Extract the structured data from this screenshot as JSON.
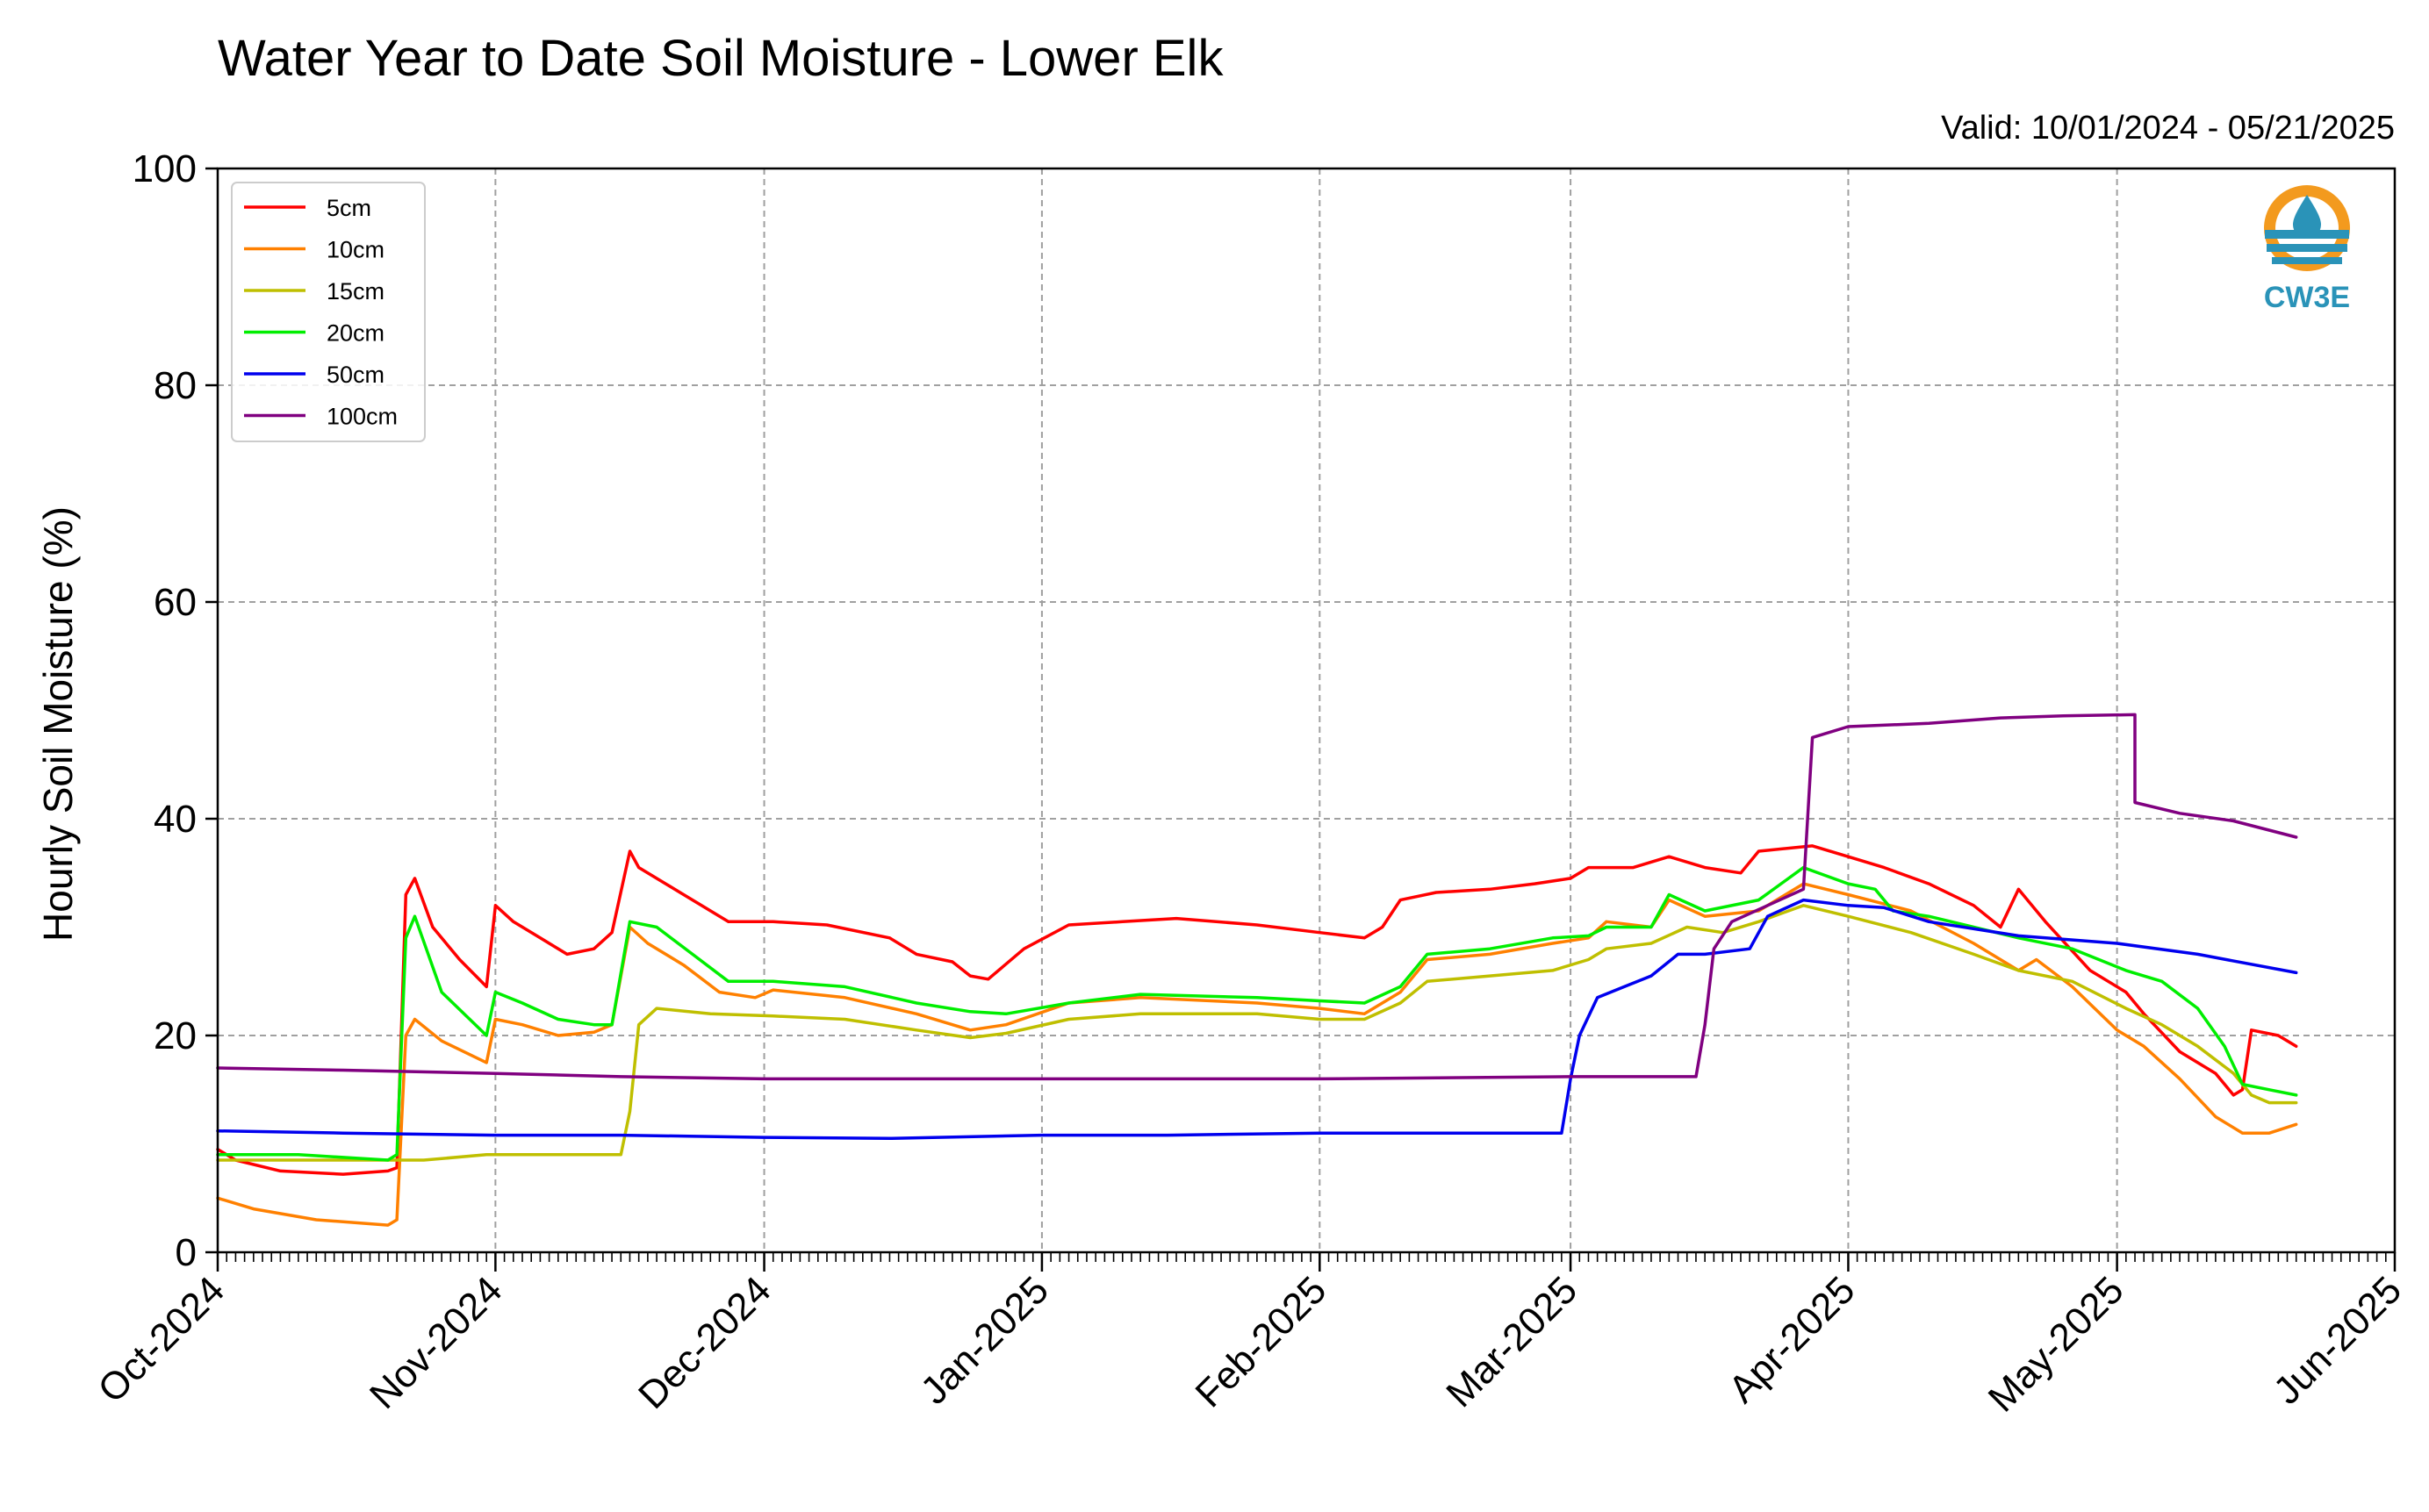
{
  "chart_data": {
    "type": "line",
    "title": "Water Year to Date Soil Moisture - Lower Elk",
    "subtitle": "Valid: 10/01/2024 - 05/21/2025",
    "ylabel": "Hourly Soil Moisture (%)",
    "xlabel": "",
    "ylim": [
      0,
      100
    ],
    "yticks": [
      0,
      20,
      40,
      60,
      80,
      100
    ],
    "xlim": [
      "2024-10-01",
      "2025-06-01"
    ],
    "xticks": [
      {
        "date": "2024-10-01",
        "label": "Oct-2024"
      },
      {
        "date": "2024-11-01",
        "label": "Nov-2024"
      },
      {
        "date": "2024-12-01",
        "label": "Dec-2024"
      },
      {
        "date": "2025-01-01",
        "label": "Jan-2025"
      },
      {
        "date": "2025-02-01",
        "label": "Feb-2025"
      },
      {
        "date": "2025-03-01",
        "label": "Mar-2025"
      },
      {
        "date": "2025-04-01",
        "label": "Apr-2025"
      },
      {
        "date": "2025-05-01",
        "label": "May-2025"
      },
      {
        "date": "2025-06-01",
        "label": "Jun-2025"
      }
    ],
    "grid": true,
    "legend_position": "top-left",
    "logo_text": "CW3E",
    "series": [
      {
        "name": "5cm",
        "color": "#ff0000",
        "points": [
          [
            "2024-10-01",
            9.5
          ],
          [
            "2024-10-03",
            8.5
          ],
          [
            "2024-10-08",
            7.5
          ],
          [
            "2024-10-15",
            7.2
          ],
          [
            "2024-10-20",
            7.5
          ],
          [
            "2024-10-21",
            7.8
          ],
          [
            "2024-10-22",
            33.0
          ],
          [
            "2024-10-23",
            34.5
          ],
          [
            "2024-10-25",
            30.0
          ],
          [
            "2024-10-28",
            27.0
          ],
          [
            "2024-10-31",
            24.5
          ],
          [
            "2024-11-01",
            32.0
          ],
          [
            "2024-11-03",
            30.5
          ],
          [
            "2024-11-06",
            29.0
          ],
          [
            "2024-11-09",
            27.5
          ],
          [
            "2024-11-12",
            28.0
          ],
          [
            "2024-11-14",
            29.5
          ],
          [
            "2024-11-16",
            37.0
          ],
          [
            "2024-11-17",
            35.5
          ],
          [
            "2024-11-20",
            34.0
          ],
          [
            "2024-11-24",
            32.0
          ],
          [
            "2024-11-27",
            30.5
          ],
          [
            "2024-12-02",
            30.5
          ],
          [
            "2024-12-08",
            30.2
          ],
          [
            "2024-12-15",
            29.0
          ],
          [
            "2024-12-18",
            27.5
          ],
          [
            "2024-12-22",
            26.8
          ],
          [
            "2024-12-24",
            25.5
          ],
          [
            "2024-12-26",
            25.2
          ],
          [
            "2024-12-30",
            28.0
          ],
          [
            "2025-01-04",
            30.2
          ],
          [
            "2025-01-10",
            30.5
          ],
          [
            "2025-01-16",
            30.8
          ],
          [
            "2025-01-25",
            30.2
          ],
          [
            "2025-02-01",
            29.5
          ],
          [
            "2025-02-06",
            29.0
          ],
          [
            "2025-02-08",
            30.0
          ],
          [
            "2025-02-10",
            32.5
          ],
          [
            "2025-02-14",
            33.2
          ],
          [
            "2025-02-20",
            33.5
          ],
          [
            "2025-02-25",
            34.0
          ],
          [
            "2025-03-01",
            34.5
          ],
          [
            "2025-03-03",
            35.5
          ],
          [
            "2025-03-08",
            35.5
          ],
          [
            "2025-03-12",
            36.5
          ],
          [
            "2025-03-16",
            35.5
          ],
          [
            "2025-03-20",
            35.0
          ],
          [
            "2025-03-22",
            37.0
          ],
          [
            "2025-03-28",
            37.5
          ],
          [
            "2025-04-01",
            36.5
          ],
          [
            "2025-04-05",
            35.5
          ],
          [
            "2025-04-10",
            34.0
          ],
          [
            "2025-04-15",
            32.0
          ],
          [
            "2025-04-18",
            30.0
          ],
          [
            "2025-04-20",
            33.5
          ],
          [
            "2025-04-23",
            30.5
          ],
          [
            "2025-04-28",
            26.0
          ],
          [
            "2025-05-02",
            24.0
          ],
          [
            "2025-05-04",
            22.0
          ],
          [
            "2025-05-08",
            18.5
          ],
          [
            "2025-05-12",
            16.5
          ],
          [
            "2025-05-14",
            14.5
          ],
          [
            "2025-05-15",
            15.0
          ],
          [
            "2025-05-16",
            20.5
          ],
          [
            "2025-05-19",
            20.0
          ],
          [
            "2025-05-21",
            19.0
          ]
        ]
      },
      {
        "name": "10cm",
        "color": "#ff8000",
        "points": [
          [
            "2024-10-01",
            5.0
          ],
          [
            "2024-10-05",
            4.0
          ],
          [
            "2024-10-12",
            3.0
          ],
          [
            "2024-10-20",
            2.5
          ],
          [
            "2024-10-21",
            3.0
          ],
          [
            "2024-10-22",
            20.0
          ],
          [
            "2024-10-23",
            21.5
          ],
          [
            "2024-10-26",
            19.5
          ],
          [
            "2024-10-31",
            17.5
          ],
          [
            "2024-11-01",
            21.5
          ],
          [
            "2024-11-04",
            21.0
          ],
          [
            "2024-11-08",
            20.0
          ],
          [
            "2024-11-12",
            20.3
          ],
          [
            "2024-11-14",
            21.0
          ],
          [
            "2024-11-16",
            30.0
          ],
          [
            "2024-11-18",
            28.5
          ],
          [
            "2024-11-22",
            26.5
          ],
          [
            "2024-11-26",
            24.0
          ],
          [
            "2024-11-30",
            23.5
          ],
          [
            "2024-12-02",
            24.2
          ],
          [
            "2024-12-10",
            23.5
          ],
          [
            "2024-12-18",
            22.0
          ],
          [
            "2024-12-24",
            20.5
          ],
          [
            "2024-12-28",
            21.0
          ],
          [
            "2025-01-04",
            23.0
          ],
          [
            "2025-01-12",
            23.5
          ],
          [
            "2025-01-25",
            23.0
          ],
          [
            "2025-02-01",
            22.5
          ],
          [
            "2025-02-06",
            22.0
          ],
          [
            "2025-02-10",
            24.0
          ],
          [
            "2025-02-13",
            27.0
          ],
          [
            "2025-02-20",
            27.5
          ],
          [
            "2025-02-27",
            28.5
          ],
          [
            "2025-03-03",
            29.0
          ],
          [
            "2025-03-05",
            30.5
          ],
          [
            "2025-03-10",
            30.0
          ],
          [
            "2025-03-12",
            32.5
          ],
          [
            "2025-03-16",
            31.0
          ],
          [
            "2025-03-22",
            31.5
          ],
          [
            "2025-03-27",
            34.0
          ],
          [
            "2025-04-01",
            33.0
          ],
          [
            "2025-04-08",
            31.5
          ],
          [
            "2025-04-15",
            28.5
          ],
          [
            "2025-04-20",
            26.0
          ],
          [
            "2025-04-22",
            27.0
          ],
          [
            "2025-04-26",
            24.5
          ],
          [
            "2025-05-01",
            20.5
          ],
          [
            "2025-05-04",
            19.0
          ],
          [
            "2025-05-08",
            16.0
          ],
          [
            "2025-05-12",
            12.5
          ],
          [
            "2025-05-15",
            11.0
          ],
          [
            "2025-05-18",
            11.0
          ],
          [
            "2025-05-21",
            11.8
          ]
        ]
      },
      {
        "name": "15cm",
        "color": "#bfbf00",
        "points": [
          [
            "2024-10-01",
            8.5
          ],
          [
            "2024-10-10",
            8.5
          ],
          [
            "2024-10-21",
            8.5
          ],
          [
            "2024-10-24",
            8.5
          ],
          [
            "2024-10-31",
            9.0
          ],
          [
            "2024-11-10",
            9.0
          ],
          [
            "2024-11-15",
            9.0
          ],
          [
            "2024-11-16",
            13.0
          ],
          [
            "2024-11-17",
            21.0
          ],
          [
            "2024-11-19",
            22.5
          ],
          [
            "2024-11-25",
            22.0
          ],
          [
            "2024-12-02",
            21.8
          ],
          [
            "2024-12-10",
            21.5
          ],
          [
            "2024-12-18",
            20.5
          ],
          [
            "2024-12-24",
            19.8
          ],
          [
            "2024-12-28",
            20.2
          ],
          [
            "2025-01-04",
            21.5
          ],
          [
            "2025-01-12",
            22.0
          ],
          [
            "2025-01-25",
            22.0
          ],
          [
            "2025-02-01",
            21.5
          ],
          [
            "2025-02-06",
            21.5
          ],
          [
            "2025-02-10",
            23.0
          ],
          [
            "2025-02-13",
            25.0
          ],
          [
            "2025-02-20",
            25.5
          ],
          [
            "2025-02-27",
            26.0
          ],
          [
            "2025-03-03",
            27.0
          ],
          [
            "2025-03-05",
            28.0
          ],
          [
            "2025-03-10",
            28.5
          ],
          [
            "2025-03-14",
            30.0
          ],
          [
            "2025-03-18",
            29.5
          ],
          [
            "2025-03-22",
            30.5
          ],
          [
            "2025-03-27",
            32.0
          ],
          [
            "2025-04-01",
            31.0
          ],
          [
            "2025-04-08",
            29.5
          ],
          [
            "2025-04-15",
            27.5
          ],
          [
            "2025-04-20",
            26.0
          ],
          [
            "2025-04-26",
            25.0
          ],
          [
            "2025-05-02",
            22.5
          ],
          [
            "2025-05-06",
            21.0
          ],
          [
            "2025-05-10",
            19.0
          ],
          [
            "2025-05-14",
            16.5
          ],
          [
            "2025-05-16",
            14.5
          ],
          [
            "2025-05-18",
            13.8
          ],
          [
            "2025-05-21",
            13.8
          ]
        ]
      },
      {
        "name": "20cm",
        "color": "#00ee00",
        "points": [
          [
            "2024-10-01",
            9.0
          ],
          [
            "2024-10-10",
            9.0
          ],
          [
            "2024-10-20",
            8.5
          ],
          [
            "2024-10-21",
            9.0
          ],
          [
            "2024-10-22",
            29.0
          ],
          [
            "2024-10-23",
            31.0
          ],
          [
            "2024-10-26",
            24.0
          ],
          [
            "2024-10-31",
            20.0
          ],
          [
            "2024-11-01",
            24.0
          ],
          [
            "2024-11-04",
            23.0
          ],
          [
            "2024-11-08",
            21.5
          ],
          [
            "2024-11-12",
            21.0
          ],
          [
            "2024-11-14",
            21.0
          ],
          [
            "2024-11-16",
            30.5
          ],
          [
            "2024-11-19",
            30.0
          ],
          [
            "2024-11-23",
            27.5
          ],
          [
            "2024-11-27",
            25.0
          ],
          [
            "2024-12-02",
            25.0
          ],
          [
            "2024-12-10",
            24.5
          ],
          [
            "2024-12-18",
            23.0
          ],
          [
            "2024-12-24",
            22.2
          ],
          [
            "2024-12-28",
            22.0
          ],
          [
            "2025-01-04",
            23.0
          ],
          [
            "2025-01-12",
            23.8
          ],
          [
            "2025-01-25",
            23.5
          ],
          [
            "2025-02-01",
            23.2
          ],
          [
            "2025-02-06",
            23.0
          ],
          [
            "2025-02-10",
            24.5
          ],
          [
            "2025-02-13",
            27.5
          ],
          [
            "2025-02-20",
            28.0
          ],
          [
            "2025-02-27",
            29.0
          ],
          [
            "2025-03-03",
            29.2
          ],
          [
            "2025-03-05",
            30.0
          ],
          [
            "2025-03-10",
            30.0
          ],
          [
            "2025-03-12",
            33.0
          ],
          [
            "2025-03-16",
            31.5
          ],
          [
            "2025-03-22",
            32.5
          ],
          [
            "2025-03-27",
            35.5
          ],
          [
            "2025-04-01",
            34.0
          ],
          [
            "2025-04-04",
            33.5
          ],
          [
            "2025-04-06",
            31.5
          ],
          [
            "2025-04-10",
            31.0
          ],
          [
            "2025-04-15",
            30.0
          ],
          [
            "2025-04-20",
            29.0
          ],
          [
            "2025-04-26",
            28.0
          ],
          [
            "2025-05-02",
            26.0
          ],
          [
            "2025-05-06",
            25.0
          ],
          [
            "2025-05-10",
            22.5
          ],
          [
            "2025-05-13",
            19.0
          ],
          [
            "2025-05-15",
            15.5
          ],
          [
            "2025-05-18",
            15.0
          ],
          [
            "2025-05-21",
            14.5
          ]
        ]
      },
      {
        "name": "50cm",
        "color": "#0000ee",
        "points": [
          [
            "2024-10-01",
            11.2
          ],
          [
            "2024-10-15",
            11.0
          ],
          [
            "2024-11-01",
            10.8
          ],
          [
            "2024-11-15",
            10.8
          ],
          [
            "2024-12-01",
            10.6
          ],
          [
            "2024-12-15",
            10.5
          ],
          [
            "2025-01-01",
            10.8
          ],
          [
            "2025-01-15",
            10.8
          ],
          [
            "2025-02-01",
            11.0
          ],
          [
            "2025-02-15",
            11.0
          ],
          [
            "2025-02-28",
            11.0
          ],
          [
            "2025-03-01",
            16.0
          ],
          [
            "2025-03-02",
            20.0
          ],
          [
            "2025-03-04",
            23.5
          ],
          [
            "2025-03-07",
            24.5
          ],
          [
            "2025-03-10",
            25.5
          ],
          [
            "2025-03-13",
            27.5
          ],
          [
            "2025-03-16",
            27.5
          ],
          [
            "2025-03-21",
            28.0
          ],
          [
            "2025-03-23",
            31.0
          ],
          [
            "2025-03-27",
            32.5
          ],
          [
            "2025-04-01",
            32.0
          ],
          [
            "2025-04-05",
            31.8
          ],
          [
            "2025-04-10",
            30.5
          ],
          [
            "2025-04-20",
            29.2
          ],
          [
            "2025-05-01",
            28.5
          ],
          [
            "2025-05-10",
            27.5
          ],
          [
            "2025-05-21",
            25.8
          ]
        ]
      },
      {
        "name": "100cm",
        "color": "#800080",
        "points": [
          [
            "2024-10-01",
            17.0
          ],
          [
            "2024-10-15",
            16.8
          ],
          [
            "2024-11-01",
            16.5
          ],
          [
            "2024-11-15",
            16.2
          ],
          [
            "2024-12-01",
            16.0
          ],
          [
            "2025-01-01",
            16.0
          ],
          [
            "2025-02-01",
            16.0
          ],
          [
            "2025-03-01",
            16.2
          ],
          [
            "2025-03-15",
            16.2
          ],
          [
            "2025-03-16",
            21.0
          ],
          [
            "2025-03-17",
            28.0
          ],
          [
            "2025-03-19",
            30.5
          ],
          [
            "2025-03-23",
            32.0
          ],
          [
            "2025-03-27",
            33.5
          ],
          [
            "2025-03-28",
            47.5
          ],
          [
            "2025-04-01",
            48.5
          ],
          [
            "2025-04-10",
            48.8
          ],
          [
            "2025-04-18",
            49.3
          ],
          [
            "2025-04-25",
            49.5
          ],
          [
            "2025-05-03",
            49.6
          ],
          [
            "2025-05-03",
            41.5
          ],
          [
            "2025-05-08",
            40.5
          ],
          [
            "2025-05-14",
            39.8
          ],
          [
            "2025-05-21",
            38.3
          ]
        ]
      }
    ]
  }
}
